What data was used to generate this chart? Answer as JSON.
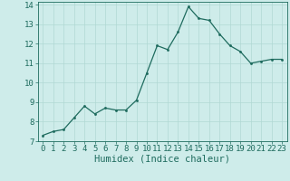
{
  "x": [
    0,
    1,
    2,
    3,
    4,
    5,
    6,
    7,
    8,
    9,
    10,
    11,
    12,
    13,
    14,
    15,
    16,
    17,
    18,
    19,
    20,
    21,
    22,
    23
  ],
  "y": [
    7.3,
    7.5,
    7.6,
    8.2,
    8.8,
    8.4,
    8.7,
    8.6,
    8.6,
    9.1,
    10.5,
    11.9,
    11.7,
    12.6,
    13.9,
    13.3,
    13.2,
    12.5,
    11.9,
    11.6,
    11.0,
    11.1,
    11.2,
    11.2
  ],
  "xlabel": "Humidex (Indice chaleur)",
  "line_color": "#1e6b5e",
  "marker_color": "#1e6b5e",
  "bg_color": "#ceecea",
  "grid_color": "#b0d8d4",
  "text_color": "#1e6b5e",
  "ylim": [
    7,
    14
  ],
  "xlim_min": -0.5,
  "xlim_max": 23.5,
  "yticks": [
    7,
    8,
    9,
    10,
    11,
    12,
    13,
    14
  ],
  "xticks": [
    0,
    1,
    2,
    3,
    4,
    5,
    6,
    7,
    8,
    9,
    10,
    11,
    12,
    13,
    14,
    15,
    16,
    17,
    18,
    19,
    20,
    21,
    22,
    23
  ],
  "tick_fontsize": 6.5,
  "xlabel_fontsize": 7.5
}
